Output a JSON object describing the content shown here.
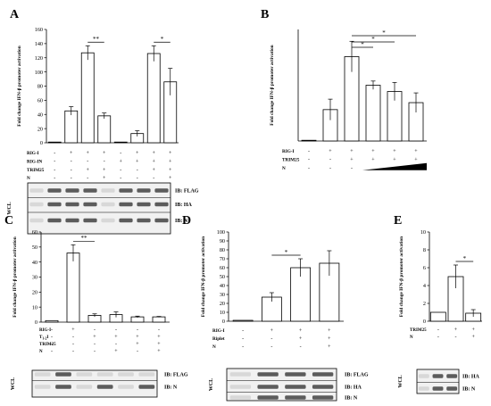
{
  "panels": [
    {
      "panel_letter": "A",
      "chart_data": {
        "type": "bar",
        "ylabel": "Fold change IFN-β promoter activation",
        "ylim": [
          0,
          160
        ],
        "yticks": [
          0,
          20,
          40,
          60,
          80,
          100,
          120,
          140,
          160
        ],
        "values": [
          1,
          45,
          127,
          38,
          1,
          13,
          126,
          86
        ],
        "errors": [
          0,
          6,
          10,
          4,
          0,
          4,
          11,
          19
        ],
        "conditions": [
          {
            "label": "RIG-I",
            "marks": [
              "-",
              "+",
              "+",
              "+",
              "-",
              "+",
              "+",
              "+"
            ]
          },
          {
            "label": "RIG-IN",
            "marks": [
              "-",
              "-",
              "-",
              "-",
              "+",
              "+",
              "+",
              "+"
            ]
          },
          {
            "label": "TRIM25",
            "marks": [
              "-",
              "-",
              "+",
              "+",
              "-",
              "-",
              "+",
              "+"
            ]
          },
          {
            "label": "N",
            "marks": [
              "-",
              "-",
              "-",
              "+",
              "-",
              "-",
              "-",
              "+"
            ]
          }
        ],
        "significance": [
          {
            "from": 2,
            "to": 3,
            "label": "**"
          },
          {
            "from": 6,
            "to": 7,
            "label": "*"
          }
        ],
        "grid": false
      },
      "blot": {
        "side_label": "WCL",
        "bands": [
          "IB: FLAG",
          "IB: HA",
          "IB: N"
        ]
      }
    },
    {
      "panel_letter": "B",
      "chart_data": {
        "type": "bar",
        "ylabel": "Fold change IFN-β promoter activation",
        "ylim": [
          0,
          160
        ],
        "values": [
          1,
          45,
          121,
          80,
          71,
          55
        ],
        "errors": [
          0,
          15,
          22,
          6,
          13,
          14
        ],
        "conditions": [
          {
            "label": "RIG-I",
            "marks": [
              "-",
              "+",
              "+",
              "+",
              "+",
              "+"
            ]
          },
          {
            "label": "TRIM25",
            "marks": [
              "-",
              "-",
              "+",
              "+",
              "+",
              "+"
            ]
          },
          {
            "label": "N",
            "marks": [
              "-",
              "-",
              "-",
              "",
              "",
              ""
            ]
          }
        ],
        "ramp_under": [
          3,
          5
        ],
        "significance": [
          {
            "from": 2,
            "to": 3,
            "label": "*"
          },
          {
            "from": 2,
            "to": 4,
            "label": "*"
          },
          {
            "from": 2,
            "to": 5,
            "label": "*"
          }
        ],
        "grid": false
      }
    },
    {
      "panel_letter": "C",
      "chart_data": {
        "type": "bar",
        "ylabel": "Fold change IFN-β promoter activation",
        "ylim": [
          0,
          60
        ],
        "yticks": [
          0,
          10,
          20,
          30,
          40,
          50,
          60
        ],
        "values": [
          1,
          46,
          4.5,
          5,
          3.5,
          3.5
        ],
        "errors": [
          0,
          5.5,
          1,
          1.8,
          0.5,
          0.3
        ],
        "conditions": [
          {
            "label": "RIG-I",
            "marks": [
              "-",
              "+",
              "-",
              "-",
              "-",
              "-"
            ]
          },
          {
            "label": "T1-2I",
            "marks": [
              "-",
              "-",
              "+",
              "+",
              "+",
              "+"
            ]
          },
          {
            "label": "TRIM25",
            "marks": [
              "-",
              "-",
              "-",
              "-",
              "+",
              "+"
            ]
          },
          {
            "label": "N",
            "marks": [
              "-",
              "-",
              "-",
              "+",
              "-",
              "+"
            ]
          }
        ],
        "significance": [
          {
            "from": 1,
            "to": 2,
            "label": "**"
          }
        ],
        "grid": false
      },
      "blot": {
        "side_label": "WCL",
        "bands": [
          "IB: FLAG",
          "IB: N"
        ]
      }
    },
    {
      "panel_letter": "D",
      "chart_data": {
        "type": "bar",
        "ylabel": "Fold change IFN-β promoter activation",
        "ylim": [
          0,
          100
        ],
        "yticks": [
          0,
          10,
          20,
          30,
          40,
          50,
          60,
          70,
          80,
          90,
          100
        ],
        "values": [
          1,
          27,
          60,
          65
        ],
        "errors": [
          0,
          5,
          10,
          14
        ],
        "conditions": [
          {
            "label": "RIG-I",
            "marks": [
              "-",
              "+",
              "+",
              "+"
            ]
          },
          {
            "label": "Riplet",
            "marks": [
              "-",
              "-",
              "+",
              "+"
            ]
          },
          {
            "label": "N",
            "marks": [
              "-",
              "-",
              "-",
              "+"
            ]
          }
        ],
        "significance": [
          {
            "from": 1,
            "to": 2,
            "label": "*"
          }
        ],
        "grid": false
      },
      "blot": {
        "side_label": "WCL",
        "bands": [
          "IB: FLAG",
          "IB: HA",
          "IB: N"
        ]
      }
    },
    {
      "panel_letter": "E",
      "chart_data": {
        "type": "bar",
        "ylabel": "Fold change IFN-β promoter activation",
        "ylim": [
          0,
          10
        ],
        "yticks": [
          0,
          2,
          4,
          6,
          8,
          10
        ],
        "values": [
          1,
          5,
          0.9
        ],
        "errors": [
          0,
          1.3,
          0.4
        ],
        "conditions": [
          {
            "label": "TRIM25",
            "marks": [
              "-",
              "+",
              "+"
            ]
          },
          {
            "label": "N",
            "marks": [
              "-",
              "-",
              "+"
            ]
          }
        ],
        "significance": [
          {
            "from": 1,
            "to": 2,
            "label": "*"
          }
        ],
        "grid": false
      },
      "blot": {
        "side_label": "WCL",
        "bands": [
          "IB: HA",
          "IB: N"
        ]
      }
    }
  ]
}
